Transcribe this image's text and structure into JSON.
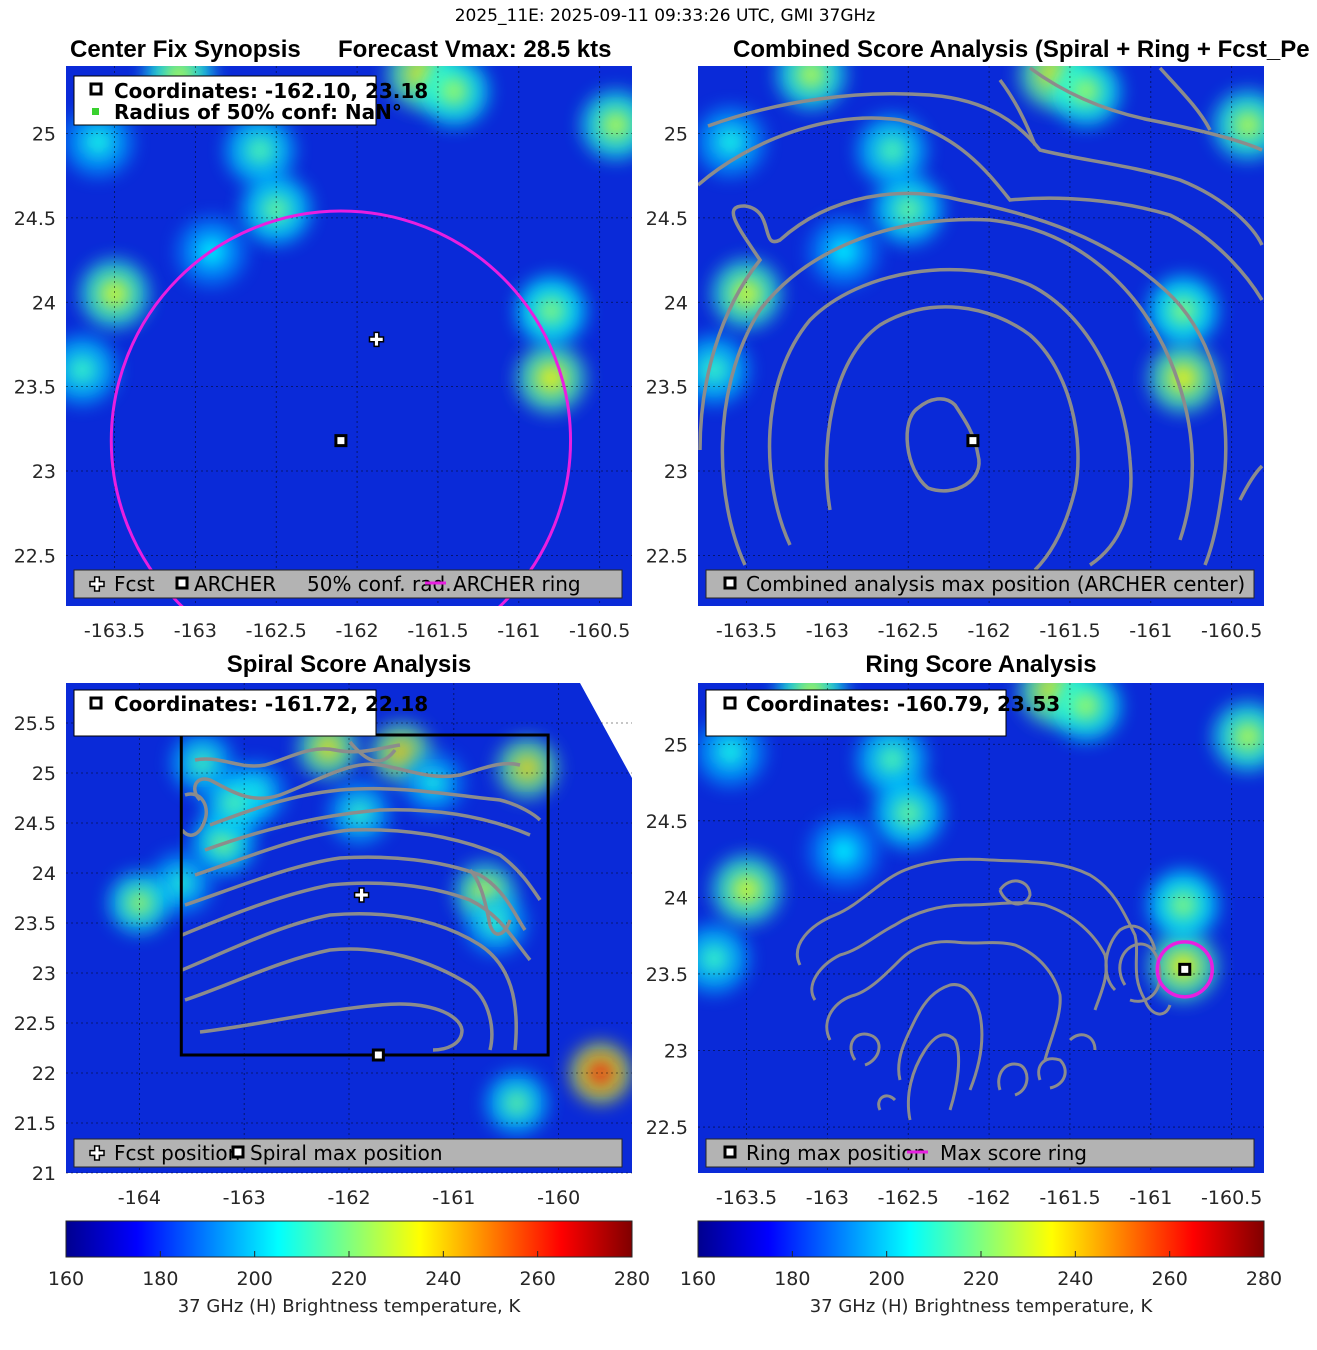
{
  "suptitle": "2025_11E: 2025-09-11 09:33:26 UTC, GMI 37GHz",
  "colors": {
    "background_field": "#0a2ad8",
    "contour": "#8c8c8c",
    "ring": "#e81fe0",
    "legend_box": "#b3b3b3",
    "conf_marker": "#39d12f"
  },
  "chart_data": [
    {
      "type": "heatmap",
      "title_left": "Center Fix Synopsis",
      "title_right": "Forecast Vmax: 28.5 kts",
      "xlim": [
        -163.8,
        -160.3
      ],
      "ylim": [
        22.2,
        25.4
      ],
      "xticks": [
        -163.5,
        -163,
        -162.5,
        -162,
        -161.5,
        -161,
        -160.5
      ],
      "xtick_labels": [
        "-163.5",
        "-163",
        "-162.5",
        "-162",
        "-161.5",
        "-161",
        "-160.5"
      ],
      "yticks": [
        22.5,
        23,
        23.5,
        24,
        24.5,
        25
      ],
      "ytick_labels": [
        "22.5",
        "23",
        "23.5",
        "24",
        "24.5",
        "25"
      ],
      "info_lines": [
        "Coordinates: -162.10, 23.18",
        "Radius of 50% conf: NaN°"
      ],
      "legend": [
        "Fcst",
        "ARCHER",
        "50% conf. rad.",
        "ARCHER ring"
      ],
      "fcst_position": [
        -161.88,
        23.78
      ],
      "archer_center": [
        -162.1,
        23.18
      ],
      "ring": {
        "center": [
          -162.1,
          23.18
        ],
        "radius_deg": 1.42
      },
      "hotspots": [
        {
          "lon": -163.1,
          "lat": 25.35,
          "tb": 228
        },
        {
          "lon": -161.6,
          "lat": 25.35,
          "tb": 238
        },
        {
          "lon": -161.4,
          "lat": 25.25,
          "tb": 225
        },
        {
          "lon": -160.4,
          "lat": 25.05,
          "tb": 228
        },
        {
          "lon": -162.6,
          "lat": 24.9,
          "tb": 215
        },
        {
          "lon": -162.5,
          "lat": 24.55,
          "tb": 218
        },
        {
          "lon": -163.5,
          "lat": 24.05,
          "tb": 232
        },
        {
          "lon": -163.7,
          "lat": 23.6,
          "tb": 212
        },
        {
          "lon": -162.9,
          "lat": 24.3,
          "tb": 205
        },
        {
          "lon": -160.8,
          "lat": 23.55,
          "tb": 236
        },
        {
          "lon": -160.8,
          "lat": 23.95,
          "tb": 222
        },
        {
          "lon": -163.6,
          "lat": 24.95,
          "tb": 208
        }
      ]
    },
    {
      "type": "heatmap",
      "title": "Combined Score Analysis (Spiral + Ring + Fcst_Pe",
      "xlim": [
        -163.8,
        -160.3
      ],
      "ylim": [
        22.2,
        25.4
      ],
      "xticks": [
        -163.5,
        -163,
        -162.5,
        -162,
        -161.5,
        -161,
        -160.5
      ],
      "xtick_labels": [
        "-163.5",
        "-163",
        "-162.5",
        "-162",
        "-161.5",
        "-161",
        "-160.5"
      ],
      "yticks": [
        22.5,
        23,
        23.5,
        24,
        24.5,
        25
      ],
      "ytick_labels": [
        "22.5",
        "23",
        "23.5",
        "24",
        "24.5",
        "25"
      ],
      "legend": [
        "Combined analysis max position (ARCHER center)"
      ],
      "max_position": [
        -162.1,
        23.18
      ]
    },
    {
      "type": "heatmap",
      "title": "Spiral Score Analysis",
      "xlim": [
        -164.7,
        -159.3
      ],
      "ylim": [
        21.0,
        25.9
      ],
      "xticks": [
        -164,
        -163,
        -162,
        -161,
        -160
      ],
      "xtick_labels": [
        "-164",
        "-163",
        "-162",
        "-161",
        "-160"
      ],
      "yticks": [
        21,
        21.5,
        22,
        22.5,
        23,
        23.5,
        24,
        24.5,
        25,
        25.5
      ],
      "ytick_labels": [
        "21",
        "21.5",
        "22",
        "22.5",
        "23",
        "23.5",
        "24",
        "24.5",
        "25",
        "25.5"
      ],
      "info_lines": [
        "Coordinates: -161.72, 22.18"
      ],
      "legend": [
        "Fcst position",
        "Spiral max position"
      ],
      "fcst_position": [
        -161.88,
        23.78
      ],
      "spiral_max": [
        -161.72,
        22.18
      ],
      "search_box": {
        "lon": [
          -163.6,
          -160.1
        ],
        "lat": [
          22.18,
          25.38
        ]
      }
    },
    {
      "type": "heatmap",
      "title": "Ring Score Analysis",
      "xlim": [
        -163.8,
        -160.3
      ],
      "ylim": [
        22.2,
        25.4
      ],
      "xticks": [
        -163.5,
        -163,
        -162.5,
        -162,
        -161.5,
        -161,
        -160.5
      ],
      "xtick_labels": [
        "-163.5",
        "-163",
        "-162.5",
        "-162",
        "-161.5",
        "-161",
        "-160.5"
      ],
      "yticks": [
        22.5,
        23,
        23.5,
        24,
        24.5,
        25
      ],
      "ytick_labels": [
        "22.5",
        "23",
        "23.5",
        "24",
        "24.5",
        "25"
      ],
      "info_lines": [
        "Coordinates: -160.79, 23.53"
      ],
      "legend": [
        "Ring max position",
        "Max score ring"
      ],
      "ring_max": [
        -160.79,
        23.53
      ],
      "ring_radius_deg": 0.17
    }
  ],
  "colorbars": [
    {
      "label": "37 GHz (H) Brightness temperature, K",
      "min": 160,
      "max": 280,
      "ticks": [
        160,
        180,
        200,
        220,
        240,
        260,
        280
      ],
      "tick_labels": [
        "160",
        "180",
        "200",
        "220",
        "240",
        "260",
        "280"
      ]
    },
    {
      "label": "37 GHz (H) Brightness temperature, K",
      "min": 160,
      "max": 280,
      "ticks": [
        160,
        180,
        200,
        220,
        240,
        260,
        280
      ],
      "tick_labels": [
        "160",
        "180",
        "200",
        "220",
        "240",
        "260",
        "280"
      ]
    }
  ]
}
